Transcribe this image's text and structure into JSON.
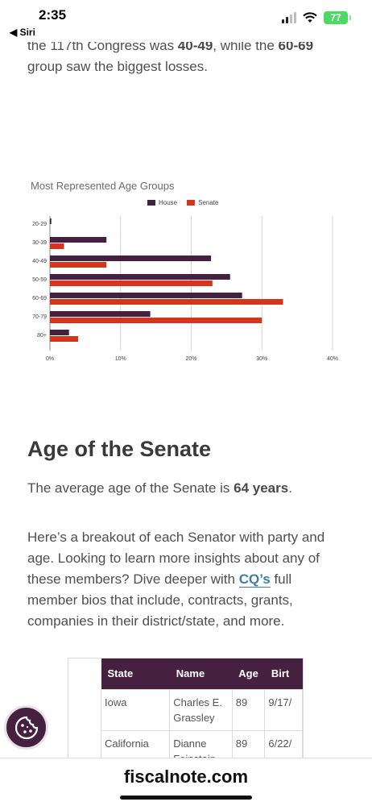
{
  "status_bar": {
    "time": "2:35",
    "back_label": "◀ Siri",
    "battery": "77"
  },
  "article": {
    "intro_prefix": "the 117th Congress was ",
    "intro_bold_1": "40-49",
    "intro_middle": ", while the ",
    "intro_bold_2": "60-69",
    "intro_suffix": " group saw the biggest losses.",
    "section_title": "Age of the Senate",
    "avg_prefix": "The average age of the Senate is ",
    "avg_bold": "64 years",
    "avg_suffix": ".",
    "breakout_prefix": "Here’s a breakout of each Senator with party and age. Looking to learn more insights about any of these members? Dive deeper with ",
    "breakout_link": "CQ’s",
    "breakout_suffix": " full member bios that include, contracts, grants, companies in their district/state, and more."
  },
  "chart_data": {
    "type": "bar",
    "orientation": "horizontal",
    "title": "Most Represented Age Groups",
    "categories": [
      "20-29",
      "30-39",
      "40-49",
      "50-59",
      "60-69",
      "70-79",
      "80+"
    ],
    "series": [
      {
        "name": "House",
        "color": "#45213f",
        "values": [
          0.2,
          8,
          22.8,
          25.5,
          27.2,
          14.2,
          2.7
        ]
      },
      {
        "name": "Senate",
        "color": "#d8331b",
        "values": [
          0,
          2,
          8,
          23,
          33,
          30,
          4
        ]
      }
    ],
    "x_ticks": [
      "0%",
      "10%",
      "20%",
      "30%",
      "40%"
    ],
    "xlim": [
      0,
      40
    ],
    "legend_position": "top",
    "grid": true
  },
  "table": {
    "headers": [
      "State",
      "Name",
      "Age",
      "Birt"
    ],
    "rows": [
      [
        "Iowa",
        "Charles E. Grassley",
        "89",
        "9/17/"
      ],
      [
        "California",
        "Dianne Feinstein",
        "89",
        "6/22/"
      ]
    ]
  },
  "bottom_bar": {
    "url": "fiscalnote.com"
  },
  "icons": {
    "cookie": "cookie-icon",
    "wifi": "wifi-icon",
    "signal": "signal-icon",
    "battery": "battery-icon"
  }
}
